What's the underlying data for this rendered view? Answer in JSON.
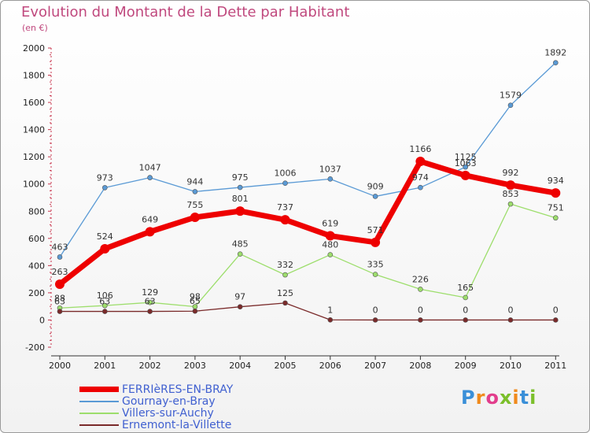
{
  "header": {
    "title": "Evolution du Montant de la Dette par Habitant",
    "subtitle": "(en €)"
  },
  "logo": {
    "text": "Proxiti",
    "letters": [
      "P",
      "r",
      "o",
      "x",
      "i",
      "t",
      "i"
    ]
  },
  "chart_data": {
    "type": "line",
    "title": "Evolution du Montant de la Dette par Habitant",
    "subtitle": "(en €)",
    "xlabel": "",
    "ylabel": "",
    "ylim": [
      -200,
      2000
    ],
    "yticks": [
      -200,
      0,
      200,
      400,
      600,
      800,
      1000,
      1200,
      1400,
      1600,
      1800,
      2000
    ],
    "categories": [
      "2000",
      "2001",
      "2002",
      "2003",
      "2004",
      "2005",
      "2006",
      "2007",
      "2008",
      "2009",
      "2010",
      "2011"
    ],
    "grid": false,
    "legend_position": "bottom-left",
    "series": [
      {
        "name": "Gournay-en-Bray",
        "color": "#5a9ad5",
        "width": 1.3,
        "values": [
          463,
          973,
          1047,
          944,
          975,
          1006,
          1037,
          909,
          974,
          1125,
          1579,
          1892
        ]
      },
      {
        "name": "Villers-sur-Auchy",
        "color": "#9dde6c",
        "width": 1.3,
        "values": [
          88,
          106,
          129,
          98,
          485,
          332,
          480,
          335,
          226,
          165,
          853,
          751
        ]
      },
      {
        "name": "Ernemont-la-Villette",
        "color": "#7a2a2a",
        "width": 1.3,
        "values": [
          63,
          63,
          63,
          65,
          97,
          125,
          1,
          0,
          0,
          0,
          0,
          0
        ]
      },
      {
        "name": "FERRIèRES-EN-BRAY",
        "color": "#ee0000",
        "width": 7,
        "values": [
          263,
          524,
          649,
          755,
          801,
          737,
          619,
          571,
          1166,
          1063,
          992,
          934
        ]
      }
    ]
  }
}
